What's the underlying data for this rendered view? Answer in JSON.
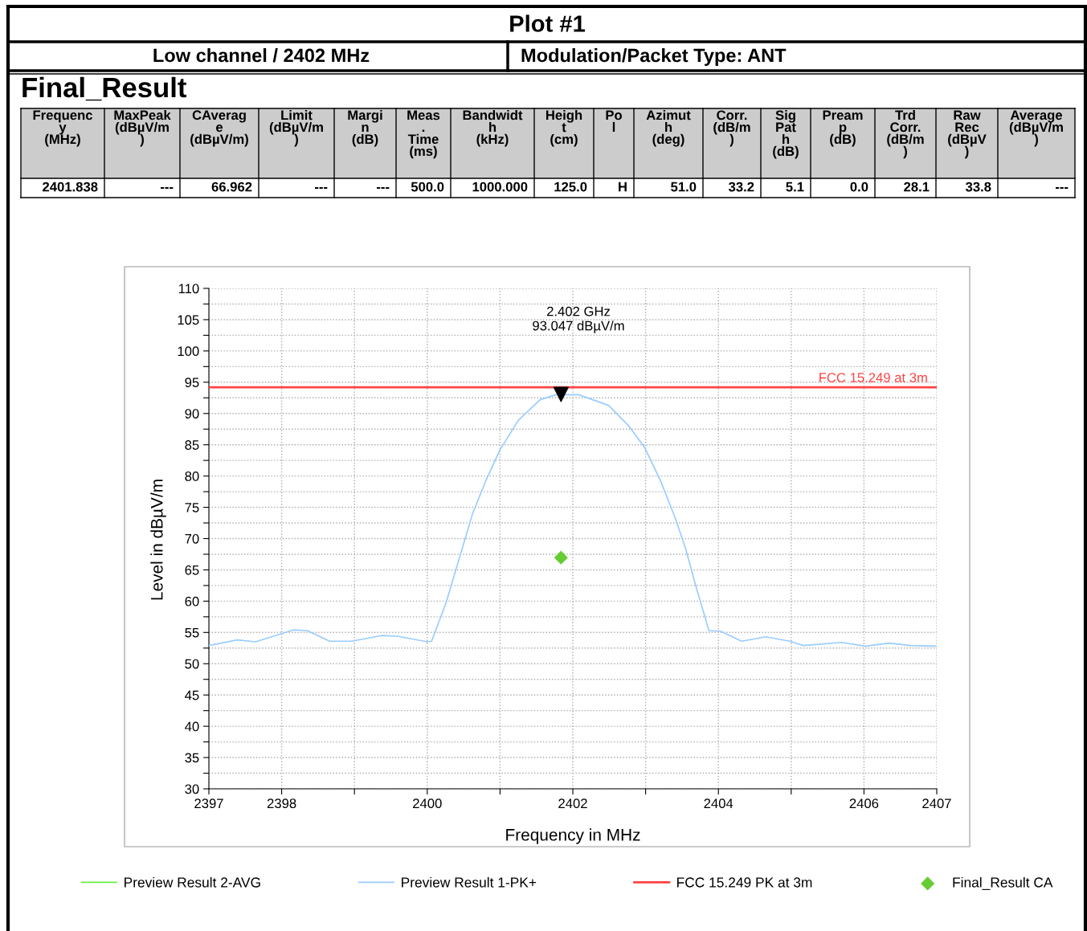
{
  "chart_data": [
    {
      "type": "other",
      "title": "Plot #1",
      "subtitle": "Low channel / 2402 MHz",
      "annotations": [
        "Modulation/Packet Type: ANT",
        "Final_Result"
      ],
      "categories": [
        "Frequenc\ny\n(MHz)",
        "MaxPeak\n(dBµV/m\n)",
        "CAverag\ne\n(dBµV/m)",
        "Limit\n(dBµV/m\n)",
        "Margi\nn\n(dB)",
        "Meas\n.\nTime\n(ms)",
        "Bandwidt\nh\n(kHz)",
        "Heigh\nt\n(cm)",
        "Po\nl",
        "Azimut\nh\n(deg)",
        "Corr.\n(dB/m\n)",
        "Sig\nPat\nh\n(dB)",
        "Pream\np\n(dB)",
        "Trd\nCorr.\n(dB/m\n)",
        "Raw\nRec\n(dBµV\n)",
        "Average\n(dBµV/m\n)"
      ],
      "value_labels": [
        "2401.838",
        "---",
        "66.962",
        "---",
        "---",
        "500.0",
        "1000.000",
        "125.0",
        "H",
        "51.0",
        "33.2",
        "5.1",
        "0.0",
        "28.1",
        "33.8",
        "---"
      ]
    },
    {
      "type": "line",
      "xlabel": "Frequency in MHz",
      "ylabel": "Level in dBµV/m",
      "xlim": [
        2397,
        2407
      ],
      "ylim": [
        30,
        110
      ],
      "xticks": [
        2397,
        2398,
        {
          "value": 2399,
          "label": null
        },
        2400,
        {
          "value": 2401,
          "label": null
        },
        2402,
        {
          "value": 2403,
          "label": null
        },
        2404,
        {
          "value": 2405,
          "label": null
        },
        2406,
        2407
      ],
      "yticks": [
        30,
        {
          "value": 32.5,
          "label": null
        },
        35,
        {
          "value": 37.5,
          "label": null
        },
        40,
        {
          "value": 42.5,
          "label": null
        },
        45,
        {
          "value": 47.5,
          "label": null
        },
        50,
        {
          "value": 52.5,
          "label": null
        },
        55,
        {
          "value": 57.5,
          "label": null
        },
        60,
        {
          "value": 62.5,
          "label": null
        },
        65,
        {
          "value": 67.5,
          "label": null
        },
        70,
        {
          "value": 72.5,
          "label": null
        },
        75,
        {
          "value": 77.5,
          "label": null
        },
        80,
        {
          "value": 82.5,
          "label": null
        },
        85,
        {
          "value": 87.5,
          "label": null
        },
        90,
        {
          "value": 92.5,
          "label": null
        },
        95,
        {
          "value": 97.5,
          "label": null
        },
        100,
        {
          "value": 102.5,
          "label": null
        },
        105,
        {
          "value": 107.5,
          "label": null
        },
        110
      ],
      "grid": true,
      "legend": "bottom",
      "line_style": "solid",
      "annotations": [
        "2.402 GHz\n93.047 dBµV/m",
        {
          "text": "FCC 15.249 at 3m",
          "x": 2407,
          "y": 94.2
        }
      ],
      "series": [
        {
          "name": "Preview Result 2-AVG",
          "type": "line",
          "color": "#66ee44"
        },
        {
          "name": "Preview Result 1-PK+",
          "type": "line",
          "color": "#99ccff",
          "x": [
            2397,
            2397.39,
            2397.64,
            2398.16,
            2398.35,
            2398.66,
            2398.96,
            2399.37,
            2399.59,
            2400.0,
            2400.06,
            2400.26,
            2400.48,
            2400.62,
            2400.81,
            2401.0,
            2401.25,
            2401.55,
            2401.77,
            2402.08,
            2402.49,
            2402.77,
            2402.99,
            2403.21,
            2403.4,
            2403.55,
            2403.7,
            2403.87,
            2404.03,
            2404.32,
            2404.65,
            2404.98,
            2405.17,
            2405.69,
            2406.02,
            2406.35,
            2406.64,
            2407
          ],
          "values": [
            52.9,
            53.8,
            53.5,
            55.4,
            55.3,
            53.6,
            53.6,
            54.5,
            54.4,
            53.5,
            53.6,
            59.8,
            68.4,
            73.9,
            79.4,
            84.2,
            88.9,
            92.2,
            93.0,
            93.0,
            91.3,
            88.0,
            84.5,
            79.1,
            73.5,
            68.4,
            62.0,
            55.3,
            55.2,
            53.6,
            54.3,
            53.6,
            52.9,
            53.4,
            52.8,
            53.3,
            52.9,
            52.8
          ]
        },
        {
          "name": "FCC 15.249 PK at 3m",
          "type": "line",
          "color": "#ff4444",
          "x": [
            2397,
            2407
          ],
          "values": [
            94.2,
            94.2
          ]
        },
        {
          "type": "scatter",
          "marker": "triangle",
          "color": "#000000",
          "x": [
            2401.838
          ],
          "values": [
            93.047
          ]
        },
        {
          "name": "Final_Result CA",
          "type": "scatter",
          "marker": "diamond",
          "color": "#66cc33",
          "x": [
            2401.838
          ],
          "values": [
            66.962
          ]
        }
      ]
    }
  ]
}
